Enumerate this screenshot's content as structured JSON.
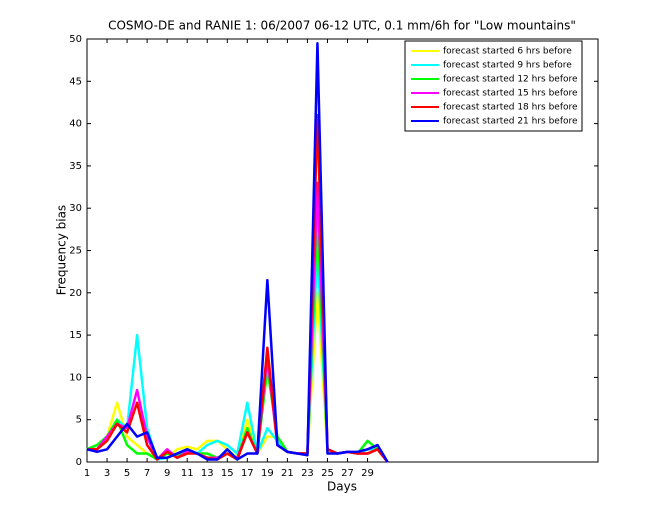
{
  "chart_data": {
    "type": "line",
    "title": "COSMO-DE and RANIE 1: 06/2007 06-12 UTC, 0.1 mm/6h for \"Low mountains\"",
    "x_label": "Days",
    "y_label": "Frequency bias",
    "x": [
      1,
      2,
      3,
      4,
      5,
      6,
      7,
      8,
      9,
      10,
      11,
      12,
      13,
      14,
      15,
      16,
      17,
      18,
      19,
      20,
      21,
      22,
      23,
      24,
      25,
      26,
      27,
      28,
      29,
      30,
      31
    ],
    "xlim": [
      1,
      52
    ],
    "xticks": [
      1,
      3,
      5,
      7,
      9,
      11,
      13,
      15,
      17,
      19,
      21,
      23,
      25,
      27,
      29
    ],
    "ylim": [
      0,
      50
    ],
    "yticks": [
      0,
      5,
      10,
      15,
      20,
      25,
      30,
      35,
      40,
      45,
      50
    ],
    "legend": "upper right",
    "series": [
      {
        "name": "forecast started 6 hrs before",
        "color": "#ffff00",
        "values": [
          1.5,
          2,
          3,
          7,
          3,
          2,
          1,
          0.5,
          0.5,
          1.5,
          1.8,
          1.5,
          2.5,
          2.5,
          1.5,
          0.5,
          5,
          1,
          3,
          3,
          1.2,
          1,
          1,
          20,
          1.2,
          1,
          1.2,
          1,
          1.5,
          1.5,
          0
        ]
      },
      {
        "name": "forecast started 9 hrs before",
        "color": "#00ffff",
        "values": [
          1.5,
          2,
          3,
          5,
          4,
          15,
          4,
          0.3,
          0.5,
          1,
          1.5,
          1,
          2,
          2.5,
          2,
          1,
          7,
          1,
          4,
          2.5,
          1.2,
          1,
          1,
          25,
          1.5,
          1,
          1.2,
          1,
          1.5,
          1.5,
          0
        ]
      },
      {
        "name": "forecast started 12 hrs before",
        "color": "#00ff00",
        "values": [
          1.5,
          2,
          3,
          5,
          2,
          1,
          1,
          0.3,
          1,
          0.8,
          1.5,
          1,
          1,
          0.5,
          1,
          0.5,
          4,
          1,
          11,
          3,
          1.2,
          1,
          1,
          29,
          1.5,
          1,
          1.2,
          1,
          2.5,
          1.5,
          0
        ]
      },
      {
        "name": "forecast started 15 hrs before",
        "color": "#ff00ff",
        "values": [
          1.5,
          1.5,
          3,
          4.5,
          4,
          8.5,
          3,
          0.3,
          1.5,
          0.5,
          1.2,
          1,
          0.5,
          0.5,
          1,
          0.5,
          3.5,
          1,
          12.5,
          2,
          1.2,
          1,
          1,
          33,
          1.5,
          1,
          1.2,
          1,
          1,
          1.5,
          0
        ]
      },
      {
        "name": "forecast started 18 hrs before",
        "color": "#ff0000",
        "values": [
          1.5,
          1.5,
          2.5,
          4.5,
          3.5,
          7,
          2,
          0.3,
          1.2,
          0.5,
          1,
          1,
          0.5,
          0.3,
          1,
          0.3,
          3.5,
          1,
          13.5,
          2,
          1.2,
          1,
          1,
          41,
          1.5,
          1,
          1.2,
          1,
          1,
          1.5,
          0
        ]
      },
      {
        "name": "forecast started 21 hrs before",
        "color": "#0000ff",
        "values": [
          1.5,
          1.2,
          1.5,
          3,
          4.5,
          3,
          3.5,
          0.5,
          0.5,
          1,
          1.5,
          1,
          0.3,
          0.3,
          1.5,
          0.3,
          1,
          1,
          21.5,
          2,
          1.2,
          1,
          0.8,
          49.5,
          1,
          1,
          1.2,
          1.2,
          1.5,
          2,
          0
        ]
      }
    ]
  }
}
